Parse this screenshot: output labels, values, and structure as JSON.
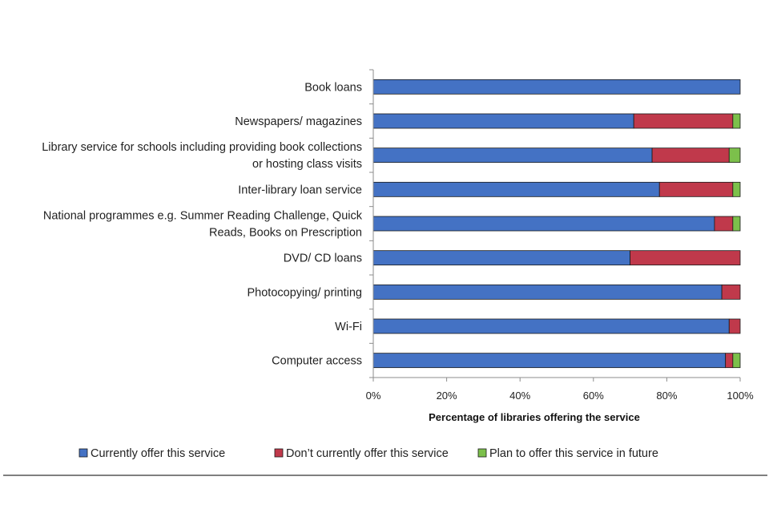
{
  "chart_data": {
    "type": "bar",
    "orientation": "horizontal",
    "stacked": true,
    "categories": [
      [
        "Book loans"
      ],
      [
        "Newspapers/ magazines"
      ],
      [
        "Library service for schools including providing book collections",
        "or hosting class visits"
      ],
      [
        "Inter-library loan service"
      ],
      [
        "National programmes e.g. Summer Reading Challenge, Quick",
        "Reads, Books on Prescription"
      ],
      [
        "DVD/ CD loans"
      ],
      [
        "Photocopying/ printing"
      ],
      [
        "Wi-Fi"
      ],
      [
        "Computer access"
      ]
    ],
    "series": [
      {
        "name": "Currently offer this service",
        "color": "#4472c4",
        "values": [
          100,
          71,
          76,
          78,
          93,
          70,
          95,
          97,
          96
        ]
      },
      {
        "name": "Don’t currently offer this service",
        "color": "#c0394b",
        "values": [
          0,
          27,
          21,
          20,
          5,
          30,
          5,
          3,
          2
        ]
      },
      {
        "name": "Plan to offer this service in future",
        "color": "#7cc04b",
        "values": [
          0,
          2,
          3,
          2,
          2,
          0,
          0,
          0,
          2
        ]
      }
    ],
    "x_ticks": [
      "0%",
      "20%",
      "40%",
      "60%",
      "80%",
      "100%"
    ],
    "xlim": [
      0,
      100
    ],
    "xlabel": "Percentage of libraries  offering the service",
    "ylabel": "",
    "legend_position": "bottom",
    "grid": false
  }
}
